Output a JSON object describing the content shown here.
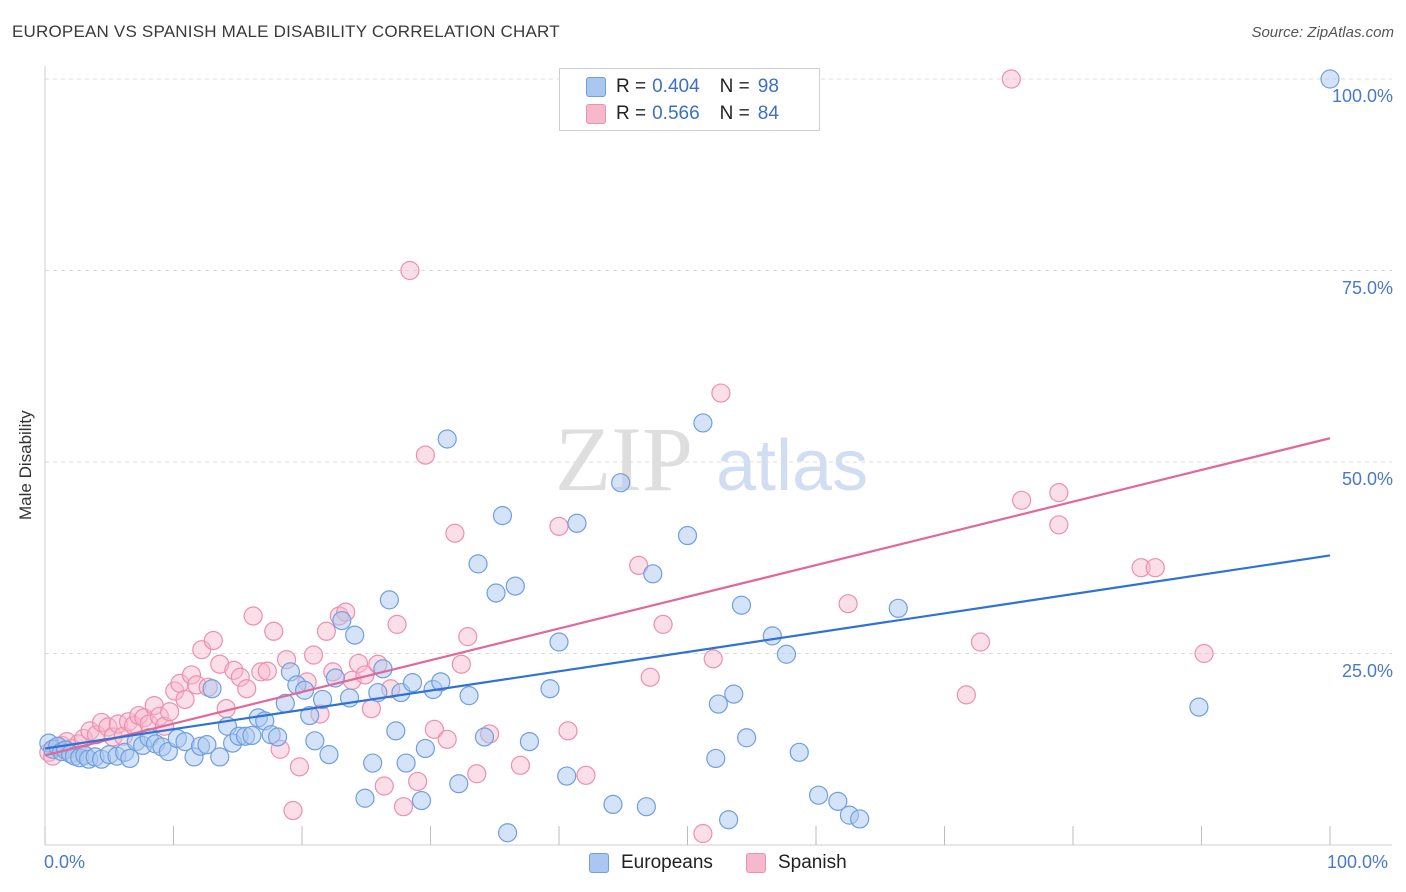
{
  "header": {
    "title": "EUROPEAN VS SPANISH MALE DISABILITY CORRELATION CHART",
    "source": "Source: ZipAtlas.com"
  },
  "watermark": {
    "part1": "ZIP",
    "part2": "atlas"
  },
  "colors": {
    "europeans_fill": "#a9c7f0",
    "europeans_stroke": "#6f9fe0",
    "europeans_line": "#2f72d6",
    "spanish_fill": "#f6b8cb",
    "spanish_stroke": "#ee8fae",
    "spanish_line": "#e0689a",
    "tick_text": "#4a79c8"
  },
  "legend": {
    "rows": [
      {
        "r_label": "R =",
        "r_value": "0.404",
        "n_label": "N =",
        "n_value": "98"
      },
      {
        "r_label": "R =",
        "r_value": "0.566",
        "n_label": "N =",
        "n_value": "84"
      }
    ]
  },
  "bottom_legend": {
    "europeans": "Europeans",
    "spanish": "Spanish"
  },
  "chart_data": {
    "type": "scatter",
    "title": "EUROPEAN VS SPANISH MALE DISABILITY CORRELATION CHART",
    "xlabel": "",
    "ylabel": "Male Disability",
    "xlim": [
      0,
      100
    ],
    "ylim": [
      0,
      100
    ],
    "x_tick_labels": [
      "0.0%",
      "100.0%"
    ],
    "y_tick_labels": [
      "100.0%",
      "75.0%",
      "50.0%",
      "25.0%"
    ],
    "y_tick_values": [
      100,
      75,
      50,
      25
    ],
    "grid": "horizontal dashed",
    "legend_position": "top-center",
    "series": [
      {
        "name": "Europeans",
        "r": 0.404,
        "n": 98,
        "trend": {
          "x": [
            0,
            100
          ],
          "y": [
            12.6,
            37.8
          ]
        },
        "points": [
          [
            0.3,
            13.3
          ],
          [
            0.6,
            12.5
          ],
          [
            1.0,
            12.9
          ],
          [
            1.3,
            12.2
          ],
          [
            1.6,
            12.4
          ],
          [
            2.0,
            11.9
          ],
          [
            2.3,
            11.6
          ],
          [
            2.7,
            11.4
          ],
          [
            3.1,
            11.7
          ],
          [
            3.4,
            11.2
          ],
          [
            3.9,
            11.5
          ],
          [
            4.4,
            11.2
          ],
          [
            5.0,
            11.8
          ],
          [
            5.6,
            11.6
          ],
          [
            6.2,
            12.1
          ],
          [
            6.6,
            11.3
          ],
          [
            7.1,
            13.5
          ],
          [
            7.6,
            13.0
          ],
          [
            8.1,
            14.0
          ],
          [
            8.6,
            13.2
          ],
          [
            9.1,
            12.8
          ],
          [
            9.6,
            12.2
          ],
          [
            10.3,
            13.9
          ],
          [
            10.9,
            13.5
          ],
          [
            11.6,
            11.5
          ],
          [
            12.1,
            12.9
          ],
          [
            12.6,
            13.1
          ],
          [
            13.0,
            20.4
          ],
          [
            13.6,
            11.5
          ],
          [
            14.2,
            15.5
          ],
          [
            14.6,
            13.3
          ],
          [
            15.1,
            14.2
          ],
          [
            15.6,
            14.2
          ],
          [
            16.1,
            14.3
          ],
          [
            16.6,
            16.6
          ],
          [
            17.1,
            16.2
          ],
          [
            17.6,
            14.4
          ],
          [
            18.1,
            14.1
          ],
          [
            18.7,
            18.5
          ],
          [
            19.1,
            22.6
          ],
          [
            19.6,
            20.9
          ],
          [
            20.2,
            20.2
          ],
          [
            20.6,
            16.9
          ],
          [
            21.0,
            13.6
          ],
          [
            21.6,
            19.0
          ],
          [
            22.1,
            11.8
          ],
          [
            22.6,
            21.8
          ],
          [
            23.1,
            29.3
          ],
          [
            23.7,
            19.2
          ],
          [
            24.1,
            27.4
          ],
          [
            24.9,
            6.1
          ],
          [
            25.5,
            10.7
          ],
          [
            25.9,
            19.9
          ],
          [
            26.3,
            23.0
          ],
          [
            26.8,
            32.0
          ],
          [
            27.3,
            14.9
          ],
          [
            27.7,
            19.9
          ],
          [
            28.1,
            10.7
          ],
          [
            28.6,
            21.2
          ],
          [
            29.3,
            5.8
          ],
          [
            29.6,
            12.6
          ],
          [
            30.2,
            20.3
          ],
          [
            30.8,
            21.3
          ],
          [
            31.3,
            53.0
          ],
          [
            32.2,
            8.0
          ],
          [
            33.0,
            19.5
          ],
          [
            33.7,
            36.7
          ],
          [
            34.2,
            14.1
          ],
          [
            35.1,
            32.9
          ],
          [
            35.6,
            43.0
          ],
          [
            36.0,
            1.6
          ],
          [
            36.6,
            33.8
          ],
          [
            37.7,
            13.5
          ],
          [
            39.3,
            20.4
          ],
          [
            40.0,
            26.5
          ],
          [
            40.6,
            9.0
          ],
          [
            41.4,
            42.0
          ],
          [
            44.2,
            5.3
          ],
          [
            44.8,
            47.3
          ],
          [
            46.8,
            5.0
          ],
          [
            47.3,
            35.4
          ],
          [
            50.0,
            40.4
          ],
          [
            51.2,
            55.1
          ],
          [
            52.2,
            11.3
          ],
          [
            52.4,
            18.4
          ],
          [
            53.2,
            3.3
          ],
          [
            53.6,
            19.7
          ],
          [
            54.2,
            31.3
          ],
          [
            54.6,
            14.0
          ],
          [
            56.6,
            27.3
          ],
          [
            57.7,
            24.9
          ],
          [
            58.7,
            12.1
          ],
          [
            60.2,
            6.5
          ],
          [
            61.7,
            5.7
          ],
          [
            62.6,
            3.9
          ],
          [
            63.4,
            3.4
          ],
          [
            66.4,
            30.9
          ],
          [
            89.8,
            18.0
          ],
          [
            100.0,
            100.0
          ]
        ]
      },
      {
        "name": "Spanish",
        "r": 0.566,
        "n": 84,
        "trend": {
          "x": [
            0,
            100
          ],
          "y": [
            11.7,
            53.1
          ]
        },
        "points": [
          [
            0.3,
            12.1
          ],
          [
            0.6,
            11.6
          ],
          [
            0.9,
            12.8
          ],
          [
            1.3,
            13.0
          ],
          [
            1.7,
            13.5
          ],
          [
            2.1,
            12.6
          ],
          [
            2.6,
            13.2
          ],
          [
            3.0,
            13.9
          ],
          [
            3.5,
            14.9
          ],
          [
            4.0,
            14.4
          ],
          [
            4.4,
            16.0
          ],
          [
            4.9,
            15.4
          ],
          [
            5.3,
            14.1
          ],
          [
            5.7,
            15.8
          ],
          [
            6.1,
            14.2
          ],
          [
            6.5,
            16.1
          ],
          [
            6.9,
            15.6
          ],
          [
            7.3,
            16.9
          ],
          [
            7.7,
            16.6
          ],
          [
            8.1,
            15.8
          ],
          [
            8.5,
            18.2
          ],
          [
            8.9,
            16.8
          ],
          [
            9.3,
            15.5
          ],
          [
            9.7,
            17.4
          ],
          [
            10.1,
            20.1
          ],
          [
            10.5,
            21.1
          ],
          [
            10.9,
            19.0
          ],
          [
            11.4,
            22.2
          ],
          [
            11.8,
            20.9
          ],
          [
            12.2,
            25.5
          ],
          [
            12.7,
            20.6
          ],
          [
            13.1,
            26.7
          ],
          [
            13.6,
            23.6
          ],
          [
            14.1,
            17.8
          ],
          [
            14.7,
            22.8
          ],
          [
            15.2,
            21.9
          ],
          [
            15.7,
            20.4
          ],
          [
            16.2,
            29.9
          ],
          [
            16.8,
            22.6
          ],
          [
            17.3,
            22.7
          ],
          [
            17.8,
            27.9
          ],
          [
            18.3,
            12.5
          ],
          [
            18.8,
            24.2
          ],
          [
            19.3,
            4.5
          ],
          [
            19.8,
            10.2
          ],
          [
            20.4,
            21.3
          ],
          [
            20.9,
            24.8
          ],
          [
            21.4,
            17.1
          ],
          [
            21.9,
            27.9
          ],
          [
            22.4,
            22.6
          ],
          [
            22.9,
            29.9
          ],
          [
            23.4,
            30.4
          ],
          [
            23.9,
            21.5
          ],
          [
            24.4,
            23.7
          ],
          [
            24.9,
            22.2
          ],
          [
            25.4,
            17.8
          ],
          [
            25.9,
            23.6
          ],
          [
            26.4,
            7.7
          ],
          [
            26.9,
            20.4
          ],
          [
            27.4,
            28.8
          ],
          [
            27.9,
            5.0
          ],
          [
            28.4,
            75.0
          ],
          [
            29.0,
            8.3
          ],
          [
            29.6,
            50.9
          ],
          [
            30.3,
            15.1
          ],
          [
            31.3,
            13.8
          ],
          [
            31.9,
            40.7
          ],
          [
            32.4,
            23.6
          ],
          [
            32.9,
            27.2
          ],
          [
            33.6,
            9.3
          ],
          [
            34.6,
            14.5
          ],
          [
            37.0,
            10.4
          ],
          [
            40.0,
            41.6
          ],
          [
            40.7,
            14.9
          ],
          [
            42.1,
            9.1
          ],
          [
            46.2,
            36.5
          ],
          [
            47.1,
            21.9
          ],
          [
            48.1,
            28.8
          ],
          [
            51.2,
            1.5
          ],
          [
            52.0,
            24.3
          ],
          [
            52.6,
            59.0
          ],
          [
            62.5,
            31.5
          ],
          [
            75.2,
            100.0
          ],
          [
            76.0,
            45.0
          ]
        ]
      }
    ]
  },
  "spanish_extra_points": [
    [
      71.7,
      19.6
    ],
    [
      72.8,
      26.5
    ],
    [
      78.9,
      46.0
    ],
    [
      78.9,
      41.8
    ],
    [
      85.3,
      36.2
    ],
    [
      86.4,
      36.2
    ],
    [
      90.2,
      25.0
    ]
  ]
}
